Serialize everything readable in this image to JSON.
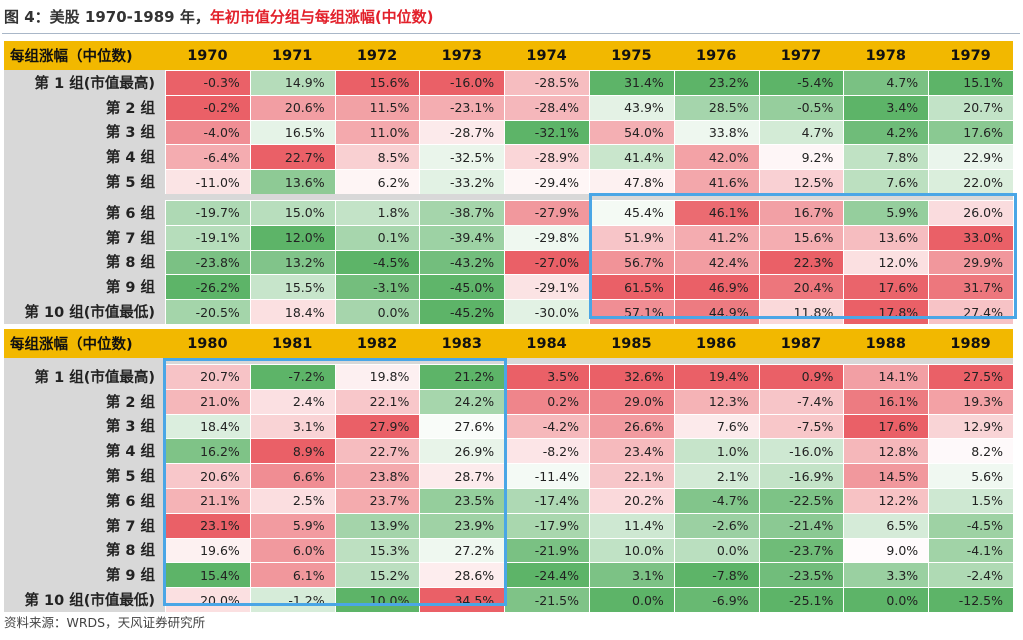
{
  "title": {
    "prefix": "图 4：美股 1970-1989 年，",
    "highlight": "年初市值分组与每组涨幅(中位数)"
  },
  "source": "资料来源：WRDS，天风证券研究所",
  "row_header": "每组涨幅（中位数)",
  "row_labels": [
    "第 1 组(市值最高)",
    "第 2 组",
    "第 3 组",
    "第 4 组",
    "第 5 组",
    "第 6 组",
    "第 7 组",
    "第 8 组",
    "第 9 组",
    "第 10 组(市值最低)"
  ],
  "tables": [
    {
      "years": [
        "1970",
        "1971",
        "1972",
        "1973",
        "1974",
        "1975",
        "1976",
        "1977",
        "1978",
        "1979"
      ],
      "rows": [
        [
          "-0.3%",
          "14.9%",
          "15.6%",
          "-16.0%",
          "-28.5%",
          "31.4%",
          "23.2%",
          "-5.4%",
          "4.7%",
          "15.1%"
        ],
        [
          "-0.2%",
          "20.6%",
          "11.5%",
          "-23.1%",
          "-28.4%",
          "43.9%",
          "28.5%",
          "-0.5%",
          "3.4%",
          "20.7%"
        ],
        [
          "-4.0%",
          "16.5%",
          "11.0%",
          "-28.7%",
          "-32.1%",
          "54.0%",
          "33.8%",
          "4.7%",
          "4.2%",
          "17.6%"
        ],
        [
          "-6.4%",
          "22.7%",
          "8.5%",
          "-32.5%",
          "-28.9%",
          "41.4%",
          "42.0%",
          "9.2%",
          "7.8%",
          "22.9%"
        ],
        [
          "-11.0%",
          "13.6%",
          "6.2%",
          "-33.2%",
          "-29.4%",
          "47.8%",
          "41.6%",
          "12.5%",
          "7.6%",
          "22.0%"
        ],
        [
          "-19.7%",
          "15.0%",
          "1.8%",
          "-38.7%",
          "-27.9%",
          "45.4%",
          "46.1%",
          "16.7%",
          "5.9%",
          "26.0%"
        ],
        [
          "-19.1%",
          "12.0%",
          "0.1%",
          "-39.4%",
          "-29.8%",
          "51.9%",
          "41.2%",
          "15.6%",
          "13.6%",
          "33.0%"
        ],
        [
          "-23.8%",
          "13.2%",
          "-4.5%",
          "-43.2%",
          "-27.0%",
          "56.7%",
          "42.4%",
          "22.3%",
          "12.0%",
          "29.9%"
        ],
        [
          "-26.2%",
          "15.5%",
          "-3.1%",
          "-45.0%",
          "-29.1%",
          "61.5%",
          "46.9%",
          "20.4%",
          "17.6%",
          "31.7%"
        ],
        [
          "-20.5%",
          "18.4%",
          "0.0%",
          "-45.2%",
          "-30.0%",
          "57.1%",
          "44.9%",
          "11.8%",
          "17.8%",
          "27.4%"
        ]
      ]
    },
    {
      "years": [
        "1980",
        "1981",
        "1982",
        "1983",
        "1984",
        "1985",
        "1986",
        "1987",
        "1988",
        "1989"
      ],
      "rows": [
        [
          "20.7%",
          "-7.2%",
          "19.8%",
          "21.2%",
          "3.5%",
          "32.6%",
          "19.4%",
          "0.9%",
          "14.1%",
          "27.5%"
        ],
        [
          "21.0%",
          "2.4%",
          "22.1%",
          "24.2%",
          "0.2%",
          "29.0%",
          "12.3%",
          "-7.4%",
          "16.1%",
          "19.3%"
        ],
        [
          "18.4%",
          "3.1%",
          "27.9%",
          "27.6%",
          "-4.2%",
          "26.6%",
          "7.6%",
          "-7.5%",
          "17.6%",
          "12.9%"
        ],
        [
          "16.2%",
          "8.9%",
          "22.7%",
          "26.9%",
          "-8.2%",
          "23.4%",
          "1.0%",
          "-16.0%",
          "12.8%",
          "8.2%"
        ],
        [
          "20.6%",
          "6.6%",
          "23.8%",
          "28.7%",
          "-11.4%",
          "22.1%",
          "2.1%",
          "-16.9%",
          "14.5%",
          "5.6%"
        ],
        [
          "21.1%",
          "2.5%",
          "23.7%",
          "23.5%",
          "-17.4%",
          "20.2%",
          "-4.7%",
          "-22.5%",
          "12.2%",
          "1.5%"
        ],
        [
          "23.1%",
          "5.9%",
          "13.9%",
          "23.9%",
          "-17.9%",
          "11.4%",
          "-2.6%",
          "-21.4%",
          "6.5%",
          "-4.5%"
        ],
        [
          "19.6%",
          "6.0%",
          "15.3%",
          "27.2%",
          "-21.9%",
          "10.0%",
          "0.0%",
          "-23.7%",
          "9.0%",
          "-4.1%"
        ],
        [
          "15.4%",
          "6.1%",
          "15.2%",
          "28.6%",
          "-24.4%",
          "3.1%",
          "-7.8%",
          "-23.5%",
          "3.3%",
          "-2.4%"
        ],
        [
          "20.0%",
          "-1.2%",
          "10.0%",
          "34.5%",
          "-21.5%",
          "0.0%",
          "-6.9%",
          "-25.1%",
          "0.0%",
          "-12.5%"
        ]
      ]
    }
  ],
  "colors": {
    "header": "#f2b800",
    "label_bg": "#d8d8d8",
    "high": "#e8525a",
    "low": "#4fad5b",
    "mid": "#ffffff",
    "highlight_box": "#4aa6e6"
  }
}
